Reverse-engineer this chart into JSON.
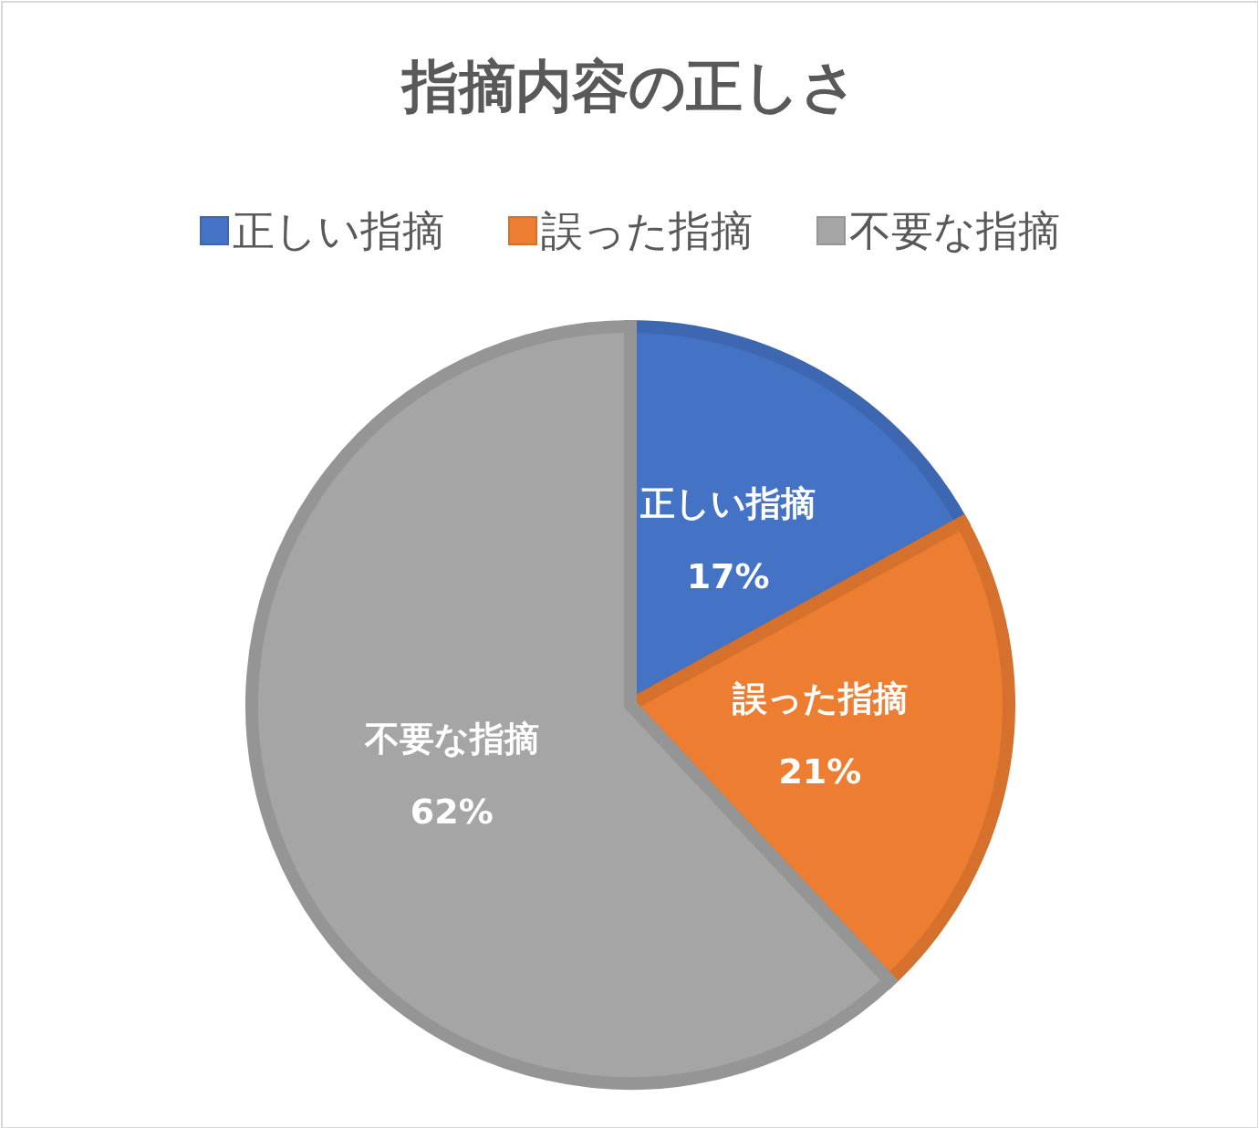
{
  "chart_data": {
    "type": "pie",
    "title": "指摘内容の正しさ",
    "categories": [
      "正しい指摘",
      "誤った指摘",
      "不要な指摘"
    ],
    "values": [
      17,
      21,
      62
    ],
    "colors": [
      "#4472c4",
      "#ed7d31",
      "#a5a5a5"
    ],
    "value_labels": [
      "17%",
      "21%",
      "62%"
    ],
    "legend": "top"
  }
}
